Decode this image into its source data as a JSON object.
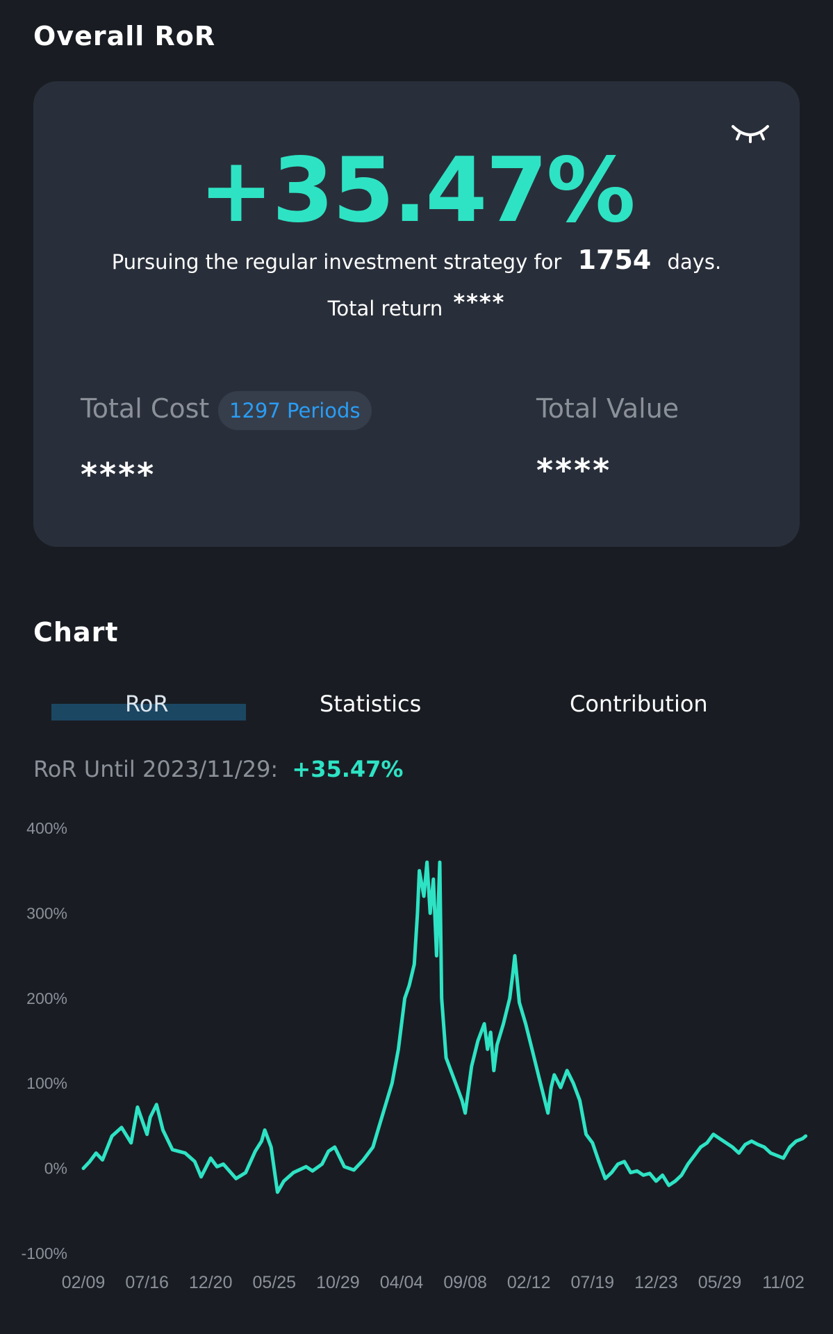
{
  "header": {
    "title": "Overall RoR"
  },
  "summary_card": {
    "ror_value": "+35.47%",
    "pursuing_prefix": "Pursuing the regular investment strategy for",
    "days": "1754",
    "days_suffix": "days.",
    "total_return_label": "Total return",
    "total_return_value": "****",
    "total_cost_label": "Total Cost",
    "periods_badge": "1297 Periods",
    "total_cost_value": "****",
    "total_value_label": "Total Value",
    "total_value_value": "****",
    "visibility_icon": "eye-closed-icon"
  },
  "chart_section": {
    "title": "Chart",
    "tabs": [
      {
        "label": "RoR",
        "selected": true
      },
      {
        "label": "Statistics",
        "selected": false
      },
      {
        "label": "Contribution",
        "selected": false
      }
    ],
    "ror_until_label": "RoR Until 2023/11/29:",
    "ror_until_value": "+35.47%"
  },
  "colors": {
    "accent": "#2ee3c4",
    "badge_text": "#2a9df4",
    "background": "#191d23",
    "card": "#292f3a"
  },
  "chart_data": {
    "type": "line",
    "x_ticks": [
      "02/09",
      "07/16",
      "12/20",
      "05/25",
      "10/29",
      "04/04",
      "09/08",
      "02/12",
      "07/19",
      "12/23",
      "05/29",
      "11/02"
    ],
    "y_ticks": [
      "400%",
      "300%",
      "200%",
      "100%",
      "0%",
      "-100%"
    ],
    "ylim": [
      -100,
      400
    ],
    "grid": false,
    "series": [
      {
        "color": "#2ee3c4",
        "points": [
          [
            0,
            0
          ],
          [
            0.1,
            8
          ],
          [
            0.2,
            18
          ],
          [
            0.3,
            10
          ],
          [
            0.45,
            38
          ],
          [
            0.6,
            48
          ],
          [
            0.75,
            30
          ],
          [
            0.85,
            72
          ],
          [
            1.0,
            40
          ],
          [
            1.05,
            60
          ],
          [
            1.15,
            75
          ],
          [
            1.25,
            45
          ],
          [
            1.4,
            22
          ],
          [
            1.6,
            18
          ],
          [
            1.75,
            8
          ],
          [
            1.85,
            -10
          ],
          [
            2.0,
            12
          ],
          [
            2.1,
            2
          ],
          [
            2.2,
            5
          ],
          [
            2.4,
            -12
          ],
          [
            2.55,
            -5
          ],
          [
            2.7,
            20
          ],
          [
            2.8,
            32
          ],
          [
            2.85,
            45
          ],
          [
            2.95,
            25
          ],
          [
            3.05,
            -28
          ],
          [
            3.15,
            -15
          ],
          [
            3.3,
            -5
          ],
          [
            3.5,
            2
          ],
          [
            3.6,
            -3
          ],
          [
            3.75,
            5
          ],
          [
            3.85,
            20
          ],
          [
            3.95,
            25
          ],
          [
            4.1,
            2
          ],
          [
            4.25,
            -2
          ],
          [
            4.4,
            10
          ],
          [
            4.55,
            25
          ],
          [
            4.65,
            50
          ],
          [
            4.75,
            75
          ],
          [
            4.85,
            100
          ],
          [
            4.95,
            140
          ],
          [
            5.05,
            200
          ],
          [
            5.12,
            215
          ],
          [
            5.2,
            240
          ],
          [
            5.25,
            300
          ],
          [
            5.28,
            350
          ],
          [
            5.35,
            320
          ],
          [
            5.4,
            360
          ],
          [
            5.45,
            300
          ],
          [
            5.5,
            340
          ],
          [
            5.55,
            250
          ],
          [
            5.6,
            360
          ],
          [
            5.63,
            200
          ],
          [
            5.7,
            130
          ],
          [
            5.75,
            120
          ],
          [
            5.85,
            100
          ],
          [
            5.95,
            80
          ],
          [
            6.0,
            65
          ],
          [
            6.1,
            120
          ],
          [
            6.2,
            150
          ],
          [
            6.3,
            170
          ],
          [
            6.35,
            140
          ],
          [
            6.4,
            160
          ],
          [
            6.45,
            115
          ],
          [
            6.5,
            145
          ],
          [
            6.6,
            170
          ],
          [
            6.7,
            200
          ],
          [
            6.75,
            230
          ],
          [
            6.78,
            250
          ],
          [
            6.85,
            195
          ],
          [
            6.95,
            170
          ],
          [
            7.05,
            140
          ],
          [
            7.15,
            110
          ],
          [
            7.25,
            80
          ],
          [
            7.3,
            65
          ],
          [
            7.35,
            95
          ],
          [
            7.4,
            110
          ],
          [
            7.5,
            95
          ],
          [
            7.6,
            115
          ],
          [
            7.7,
            100
          ],
          [
            7.8,
            80
          ],
          [
            7.9,
            40
          ],
          [
            8.0,
            30
          ],
          [
            8.1,
            8
          ],
          [
            8.2,
            -12
          ],
          [
            8.3,
            -5
          ],
          [
            8.4,
            5
          ],
          [
            8.5,
            8
          ],
          [
            8.6,
            -5
          ],
          [
            8.7,
            -3
          ],
          [
            8.8,
            -8
          ],
          [
            8.9,
            -6
          ],
          [
            9.0,
            -15
          ],
          [
            9.1,
            -8
          ],
          [
            9.2,
            -20
          ],
          [
            9.3,
            -15
          ],
          [
            9.4,
            -8
          ],
          [
            9.5,
            5
          ],
          [
            9.6,
            15
          ],
          [
            9.7,
            25
          ],
          [
            9.8,
            30
          ],
          [
            9.9,
            40
          ],
          [
            10.0,
            35
          ],
          [
            10.1,
            30
          ],
          [
            10.2,
            25
          ],
          [
            10.3,
            18
          ],
          [
            10.4,
            28
          ],
          [
            10.5,
            32
          ],
          [
            10.6,
            28
          ],
          [
            10.7,
            25
          ],
          [
            10.8,
            18
          ],
          [
            10.9,
            15
          ],
          [
            11.0,
            12
          ],
          [
            11.1,
            25
          ],
          [
            11.2,
            32
          ],
          [
            11.3,
            35
          ],
          [
            11.35,
            38
          ]
        ]
      }
    ]
  }
}
